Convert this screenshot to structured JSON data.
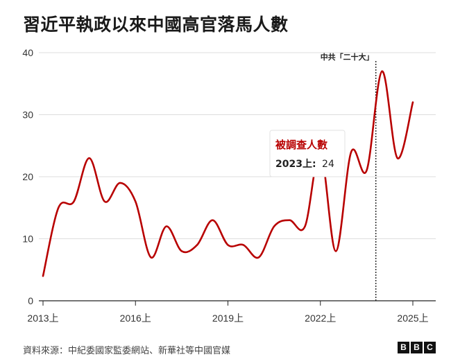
{
  "title": "習近平執政以來中國高官落馬人數",
  "source": "資料來源：中紀委國家監委網站、新華社等中國官媒",
  "logo": [
    "B",
    "B",
    "C"
  ],
  "colors": {
    "line": "#b80000",
    "annotation_line": "#222222",
    "grid": "#dddddd",
    "text": "#222222"
  },
  "annotation": {
    "label": "中共「二十大」",
    "x_pos": 21.6
  },
  "tooltip": {
    "title": "被調查人數",
    "period": "2023上:",
    "value": "24"
  },
  "chart_data": {
    "type": "line",
    "title": "習近平執政以來中國高官落馬人數",
    "xlabel": "",
    "ylabel": "",
    "ylim": [
      0,
      40
    ],
    "yticks": [
      0,
      10,
      20,
      30,
      40
    ],
    "xticks": [
      {
        "pos": 0,
        "label": "2013上"
      },
      {
        "pos": 6,
        "label": "2016上"
      },
      {
        "pos": 12,
        "label": "2019上"
      },
      {
        "pos": 18,
        "label": "2022上"
      },
      {
        "pos": 24,
        "label": "2025上"
      }
    ],
    "x": [
      "2013上",
      "2013下",
      "2014上",
      "2014下",
      "2015上",
      "2015下",
      "2016上",
      "2016下",
      "2017上",
      "2017下",
      "2018上",
      "2018下",
      "2019上",
      "2019下",
      "2020上",
      "2020下",
      "2021上",
      "2021下",
      "2022上",
      "2022下",
      "2023上",
      "2023下",
      "2024上",
      "2024下",
      "2025上"
    ],
    "series": [
      {
        "values": [
          4,
          15,
          16,
          23,
          16,
          19,
          16,
          7,
          12,
          8,
          9,
          13,
          9,
          9,
          7,
          12,
          13,
          12,
          24,
          8,
          24,
          21,
          37,
          23,
          32
        ]
      }
    ],
    "grid": true
  }
}
